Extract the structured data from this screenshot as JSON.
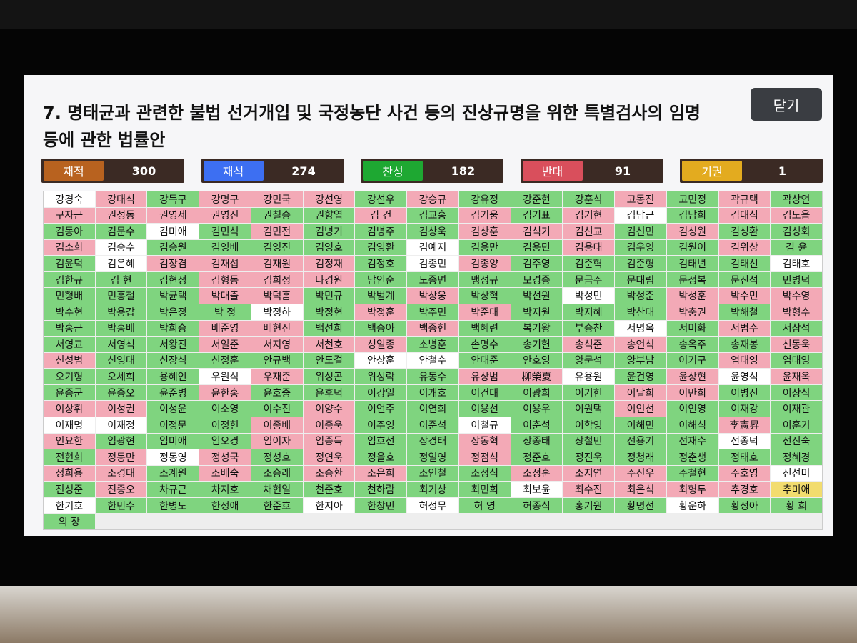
{
  "header": {
    "title": "7. 명태균과 관련한 불법 선거개입 및 국정농단 사건 등의 진상규명을 위한 특별검사의 임명 등에 관한 법률안",
    "close_button": "닫기"
  },
  "summary": [
    {
      "label": "재적",
      "value": 300,
      "color": "#b8621f"
    },
    {
      "label": "재석",
      "value": 274,
      "color": "#3d6ff2"
    },
    {
      "label": "찬성",
      "value": 182,
      "color": "#1ea832"
    },
    {
      "label": "반대",
      "value": 91,
      "color": "#d94f5c"
    },
    {
      "label": "기권",
      "value": 1,
      "color": "#e3ab1f"
    }
  ],
  "grid": {
    "rows": [
      [
        "강경숙",
        "강대식",
        "강득구",
        "강명구",
        "강민국",
        "강선영",
        "강선우",
        "강승규",
        "강유정",
        "강준현",
        "강훈식",
        "고동진",
        "고민정",
        "곽규택",
        "곽상언"
      ],
      [
        "구자근",
        "권성동",
        "권영세",
        "권영진",
        "권칠승",
        "권향엽",
        "김 건",
        "김교흥",
        "김기웅",
        "김기표",
        "김기현",
        "김남근",
        "김남희",
        "김대식",
        "김도읍"
      ],
      [
        "김동아",
        "김문수",
        "김미애",
        "김민석",
        "김민전",
        "김병기",
        "김병주",
        "김상욱",
        "김상훈",
        "김석기",
        "김선교",
        "김선민",
        "김성원",
        "김성환",
        "김성회"
      ],
      [
        "김소희",
        "김승수",
        "김승원",
        "김영배",
        "김영진",
        "김영호",
        "김영환",
        "김예지",
        "김용만",
        "김용민",
        "김용태",
        "김우영",
        "김원이",
        "김위상",
        "김 윤"
      ],
      [
        "김윤덕",
        "김은혜",
        "김장겸",
        "김재섭",
        "김재원",
        "김정재",
        "김정호",
        "김종민",
        "김종양",
        "김주영",
        "김준혁",
        "김준형",
        "김태년",
        "김태선",
        "김태호"
      ],
      [
        "김한규",
        "김 현",
        "김현정",
        "김형동",
        "김희정",
        "나경원",
        "남인순",
        "노종면",
        "맹성규",
        "모경종",
        "문금주",
        "문대림",
        "문정복",
        "문진석",
        "민병덕"
      ],
      [
        "민형배",
        "민홍철",
        "박균택",
        "박대출",
        "박덕흠",
        "박민규",
        "박범계",
        "박상웅",
        "박상혁",
        "박선원",
        "박성민",
        "박성준",
        "박성훈",
        "박수민",
        "박수영"
      ],
      [
        "박수현",
        "박용갑",
        "박은정",
        "박 정",
        "박정하",
        "박정현",
        "박정훈",
        "박주민",
        "박준태",
        "박지원",
        "박지혜",
        "박찬대",
        "박충권",
        "박해철",
        "박형수"
      ],
      [
        "박홍근",
        "박홍배",
        "박희승",
        "배준영",
        "배현진",
        "백선희",
        "백승아",
        "백종헌",
        "백혜련",
        "복기왕",
        "부승찬",
        "서명옥",
        "서미화",
        "서범수",
        "서삼석"
      ],
      [
        "서영교",
        "서영석",
        "서왕진",
        "서일준",
        "서지영",
        "서천호",
        "성일종",
        "소병훈",
        "손명수",
        "송기헌",
        "송석준",
        "송언석",
        "송옥주",
        "송재봉",
        "신동욱"
      ],
      [
        "신성범",
        "신영대",
        "신장식",
        "신정훈",
        "안규백",
        "안도걸",
        "안상훈",
        "안철수",
        "안태준",
        "안호영",
        "양문석",
        "양부남",
        "어기구",
        "엄태영",
        "염태영"
      ],
      [
        "오기형",
        "오세희",
        "용혜인",
        "우원식",
        "우재준",
        "위성곤",
        "위성락",
        "유동수",
        "유상범",
        "柳榮夏",
        "유용원",
        "윤건영",
        "윤상현",
        "윤영석",
        "윤재옥"
      ],
      [
        "윤종군",
        "윤종오",
        "윤준병",
        "윤한홍",
        "윤호중",
        "윤후덕",
        "이강일",
        "이개호",
        "이건태",
        "이광희",
        "이기헌",
        "이달희",
        "이만희",
        "이병진",
        "이상식"
      ],
      [
        "이상휘",
        "이성권",
        "이성윤",
        "이소영",
        "이수진",
        "이양수",
        "이언주",
        "이연희",
        "이용선",
        "이용우",
        "이원택",
        "이인선",
        "이인영",
        "이재강",
        "이재관"
      ],
      [
        "이재명",
        "이재정",
        "이정문",
        "이정헌",
        "이종배",
        "이종욱",
        "이주영",
        "이준석",
        "이철규",
        "이춘석",
        "이학영",
        "이해민",
        "이해식",
        "李憲昇",
        "이훈기"
      ],
      [
        "인요한",
        "임광현",
        "임미애",
        "임오경",
        "임이자",
        "임종득",
        "임호선",
        "장경태",
        "장동혁",
        "장종태",
        "장철민",
        "전용기",
        "전재수",
        "전종덕",
        "전진숙"
      ],
      [
        "전현희",
        "정동만",
        "정동영",
        "정성국",
        "정성호",
        "정연욱",
        "정을호",
        "정일영",
        "정점식",
        "정준호",
        "정진욱",
        "정청래",
        "정춘생",
        "정태호",
        "정혜경"
      ],
      [
        "정희용",
        "조경태",
        "조계원",
        "조배숙",
        "조승래",
        "조승환",
        "조은희",
        "조인철",
        "조정식",
        "조정훈",
        "조지연",
        "주진우",
        "주철현",
        "주호영",
        "진선미"
      ],
      [
        "진성준",
        "진종오",
        "차규근",
        "차지호",
        "채현일",
        "천준호",
        "천하람",
        "최기상",
        "최민희",
        "최보윤",
        "최수진",
        "최은석",
        "최형두",
        "추경호",
        "추미애"
      ],
      [
        "한기호",
        "한민수",
        "한병도",
        "한정애",
        "한준호",
        "한지아",
        "한창민",
        "허성무",
        "허 영",
        "허종식",
        "홍기원",
        "황명선",
        "황운하",
        "황정아",
        "황 희"
      ],
      [
        "의 장"
      ]
    ],
    "colors": [
      [
        "#ffffff",
        "#f3a9b6",
        "#7fd47f",
        "#f3a9b6",
        "#f3a9b6",
        "#f3a9b6",
        "#7fd47f",
        "#f3a9b6",
        "#7fd47f",
        "#7fd47f",
        "#7fd47f",
        "#f3a9b6",
        "#7fd47f",
        "#f3a9b6",
        "#7fd47f"
      ],
      [
        "#f3a9b6",
        "#f3a9b6",
        "#f3a9b6",
        "#f3a9b6",
        "#7fd47f",
        "#7fd47f",
        "#f3a9b6",
        "#7fd47f",
        "#f3a9b6",
        "#7fd47f",
        "#f3a9b6",
        "#ffffff",
        "#7fd47f",
        "#f3a9b6",
        "#f3a9b6"
      ],
      [
        "#7fd47f",
        "#7fd47f",
        "#ffffff",
        "#7fd47f",
        "#f3a9b6",
        "#7fd47f",
        "#7fd47f",
        "#7fd47f",
        "#f3a9b6",
        "#f3a9b6",
        "#f3a9b6",
        "#7fd47f",
        "#f3a9b6",
        "#7fd47f",
        "#7fd47f"
      ],
      [
        "#f3a9b6",
        "#ffffff",
        "#7fd47f",
        "#7fd47f",
        "#7fd47f",
        "#7fd47f",
        "#7fd47f",
        "#ffffff",
        "#7fd47f",
        "#7fd47f",
        "#f3a9b6",
        "#7fd47f",
        "#7fd47f",
        "#f3a9b6",
        "#7fd47f"
      ],
      [
        "#7fd47f",
        "#ffffff",
        "#f3a9b6",
        "#f3a9b6",
        "#f3a9b6",
        "#f3a9b6",
        "#7fd47f",
        "#ffffff",
        "#f3a9b6",
        "#7fd47f",
        "#7fd47f",
        "#7fd47f",
        "#7fd47f",
        "#7fd47f",
        "#ffffff"
      ],
      [
        "#7fd47f",
        "#7fd47f",
        "#7fd47f",
        "#f3a9b6",
        "#f3a9b6",
        "#f3a9b6",
        "#7fd47f",
        "#7fd47f",
        "#7fd47f",
        "#7fd47f",
        "#7fd47f",
        "#7fd47f",
        "#7fd47f",
        "#7fd47f",
        "#7fd47f"
      ],
      [
        "#7fd47f",
        "#7fd47f",
        "#7fd47f",
        "#f3a9b6",
        "#f3a9b6",
        "#7fd47f",
        "#7fd47f",
        "#f3a9b6",
        "#7fd47f",
        "#7fd47f",
        "#ffffff",
        "#7fd47f",
        "#f3a9b6",
        "#f3a9b6",
        "#f3a9b6"
      ],
      [
        "#7fd47f",
        "#7fd47f",
        "#7fd47f",
        "#7fd47f",
        "#ffffff",
        "#7fd47f",
        "#f3a9b6",
        "#7fd47f",
        "#f3a9b6",
        "#7fd47f",
        "#7fd47f",
        "#7fd47f",
        "#f3a9b6",
        "#7fd47f",
        "#f3a9b6"
      ],
      [
        "#7fd47f",
        "#7fd47f",
        "#7fd47f",
        "#f3a9b6",
        "#f3a9b6",
        "#7fd47f",
        "#7fd47f",
        "#f3a9b6",
        "#7fd47f",
        "#7fd47f",
        "#7fd47f",
        "#ffffff",
        "#7fd47f",
        "#f3a9b6",
        "#7fd47f"
      ],
      [
        "#7fd47f",
        "#7fd47f",
        "#7fd47f",
        "#f3a9b6",
        "#f3a9b6",
        "#f3a9b6",
        "#f3a9b6",
        "#7fd47f",
        "#7fd47f",
        "#7fd47f",
        "#f3a9b6",
        "#f3a9b6",
        "#7fd47f",
        "#7fd47f",
        "#f3a9b6"
      ],
      [
        "#f3a9b6",
        "#7fd47f",
        "#7fd47f",
        "#7fd47f",
        "#7fd47f",
        "#7fd47f",
        "#ffffff",
        "#ffffff",
        "#7fd47f",
        "#7fd47f",
        "#7fd47f",
        "#7fd47f",
        "#7fd47f",
        "#f3a9b6",
        "#7fd47f"
      ],
      [
        "#7fd47f",
        "#7fd47f",
        "#7fd47f",
        "#ffffff",
        "#f3a9b6",
        "#7fd47f",
        "#7fd47f",
        "#7fd47f",
        "#f3a9b6",
        "#f3a9b6",
        "#ffffff",
        "#7fd47f",
        "#f3a9b6",
        "#ffffff",
        "#f3a9b6"
      ],
      [
        "#7fd47f",
        "#7fd47f",
        "#7fd47f",
        "#f3a9b6",
        "#7fd47f",
        "#7fd47f",
        "#7fd47f",
        "#7fd47f",
        "#7fd47f",
        "#7fd47f",
        "#7fd47f",
        "#f3a9b6",
        "#f3a9b6",
        "#7fd47f",
        "#7fd47f"
      ],
      [
        "#f3a9b6",
        "#f3a9b6",
        "#7fd47f",
        "#7fd47f",
        "#7fd47f",
        "#f3a9b6",
        "#7fd47f",
        "#7fd47f",
        "#7fd47f",
        "#7fd47f",
        "#7fd47f",
        "#f3a9b6",
        "#7fd47f",
        "#7fd47f",
        "#7fd47f"
      ],
      [
        "#ffffff",
        "#ffffff",
        "#7fd47f",
        "#7fd47f",
        "#f3a9b6",
        "#f3a9b6",
        "#7fd47f",
        "#7fd47f",
        "#ffffff",
        "#7fd47f",
        "#7fd47f",
        "#7fd47f",
        "#7fd47f",
        "#f3a9b6",
        "#7fd47f"
      ],
      [
        "#f3a9b6",
        "#7fd47f",
        "#7fd47f",
        "#7fd47f",
        "#f3a9b6",
        "#f3a9b6",
        "#7fd47f",
        "#7fd47f",
        "#f3a9b6",
        "#7fd47f",
        "#7fd47f",
        "#7fd47f",
        "#7fd47f",
        "#ffffff",
        "#7fd47f"
      ],
      [
        "#7fd47f",
        "#f3a9b6",
        "#ffffff",
        "#f3a9b6",
        "#7fd47f",
        "#f3a9b6",
        "#7fd47f",
        "#7fd47f",
        "#f3a9b6",
        "#7fd47f",
        "#7fd47f",
        "#7fd47f",
        "#7fd47f",
        "#7fd47f",
        "#7fd47f"
      ],
      [
        "#f3a9b6",
        "#f3a9b6",
        "#7fd47f",
        "#f3a9b6",
        "#7fd47f",
        "#f3a9b6",
        "#f3a9b6",
        "#7fd47f",
        "#7fd47f",
        "#f3a9b6",
        "#f3a9b6",
        "#f3a9b6",
        "#7fd47f",
        "#f3a9b6",
        "#ffffff"
      ],
      [
        "#7fd47f",
        "#f3a9b6",
        "#7fd47f",
        "#7fd47f",
        "#7fd47f",
        "#7fd47f",
        "#7fd47f",
        "#7fd47f",
        "#7fd47f",
        "#ffffff",
        "#f3a9b6",
        "#f3a9b6",
        "#f3a9b6",
        "#f3a9b6",
        "#f2dc6e"
      ],
      [
        "#ffffff",
        "#7fd47f",
        "#7fd47f",
        "#7fd47f",
        "#7fd47f",
        "#ffffff",
        "#7fd47f",
        "#ffffff",
        "#7fd47f",
        "#7fd47f",
        "#7fd47f",
        "#7fd47f",
        "#ffffff",
        "#7fd47f",
        "#7fd47f"
      ],
      [
        "#7fd47f"
      ]
    ]
  }
}
